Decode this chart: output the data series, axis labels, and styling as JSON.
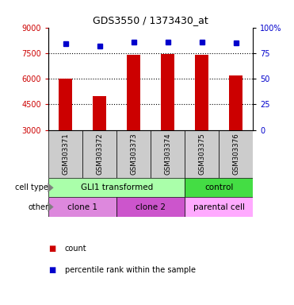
{
  "title": "GDS3550 / 1373430_at",
  "samples": [
    "GSM303371",
    "GSM303372",
    "GSM303373",
    "GSM303374",
    "GSM303375",
    "GSM303376"
  ],
  "counts": [
    6000,
    5000,
    7400,
    7450,
    7400,
    6200
  ],
  "percentile_ranks": [
    84,
    82,
    86,
    86,
    86,
    85
  ],
  "ylim_left": [
    3000,
    9000
  ],
  "ylim_right": [
    0,
    100
  ],
  "yticks_left": [
    3000,
    4500,
    6000,
    7500,
    9000
  ],
  "yticks_right": [
    0,
    25,
    50,
    75,
    100
  ],
  "bar_color": "#cc0000",
  "dot_color": "#0000cc",
  "bar_bottom": 3000,
  "cell_type_groups": [
    {
      "label": "GLI1 transformed",
      "span": [
        0,
        4
      ],
      "color": "#aaffaa"
    },
    {
      "label": "control",
      "span": [
        4,
        6
      ],
      "color": "#44dd44"
    }
  ],
  "other_groups": [
    {
      "label": "clone 1",
      "span": [
        0,
        2
      ],
      "color": "#dd88dd"
    },
    {
      "label": "clone 2",
      "span": [
        2,
        4
      ],
      "color": "#cc55cc"
    },
    {
      "label": "parental cell",
      "span": [
        4,
        6
      ],
      "color": "#ffaaff"
    }
  ],
  "tick_area_color": "#cccccc",
  "grid_yticks": [
    4500,
    6000,
    7500
  ],
  "right_tick_labels": [
    "0",
    "25",
    "50",
    "75",
    "100%"
  ],
  "bar_width": 0.4
}
